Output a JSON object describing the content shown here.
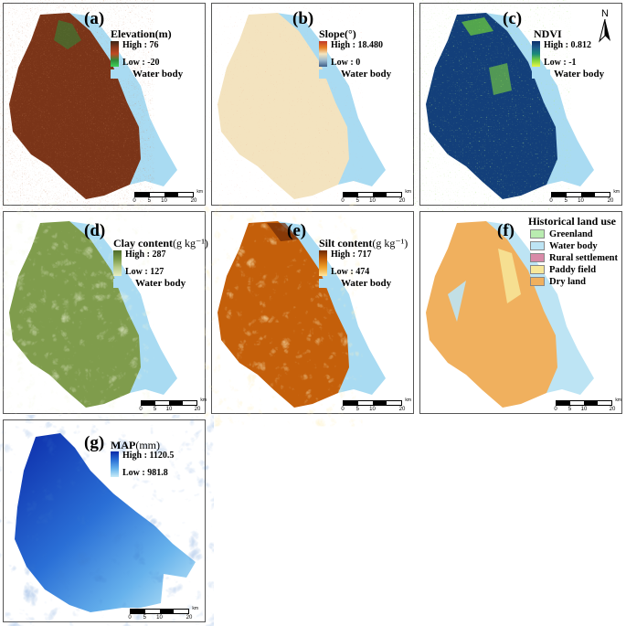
{
  "panels": {
    "a": {
      "label": "(a)",
      "title": "Elevation(m)",
      "high": "High : 76",
      "low": "Low : -20",
      "water": "Water body",
      "gradient": [
        "#3a2417",
        "#8c3a1e",
        "#c14a22",
        "#2e8b3a",
        "#3fd15a"
      ]
    },
    "b": {
      "label": "(b)",
      "title": "Slope(°)",
      "high": "High : 18.480",
      "low": "Low : 0",
      "water": "Water body",
      "gradient": [
        "#c0392b",
        "#e67e22",
        "#f5e6c0",
        "#9db9cc",
        "#3e5f8a"
      ]
    },
    "c": {
      "label": "(c)",
      "title": "NDVI",
      "high": "High : 0.812",
      "low": "Low : -1",
      "water": "Water body",
      "gradient": [
        "#0b2d6b",
        "#1f5c8c",
        "#1a8a7a",
        "#7dd43c",
        "#e8f54a"
      ]
    },
    "d": {
      "label": "(d)",
      "title": "Clay content",
      "unit": "(g kg⁻¹)",
      "high": "High : 287",
      "low": "Low : 127",
      "water": "Water body",
      "gradient": [
        "#4e6b2a",
        "#7a9a48",
        "#b8cc8a",
        "#e6edc4"
      ]
    },
    "e": {
      "label": "(e)",
      "title": "Silt content",
      "unit": "(g kg⁻¹)",
      "high": "High : 717",
      "low": "Low : 474",
      "water": "Water body",
      "gradient": [
        "#6e2a06",
        "#c45f0a",
        "#f0a12a",
        "#fde6a0"
      ]
    },
    "f": {
      "label": "(f)",
      "title": "Historical land use",
      "classes": [
        {
          "name": "Greenland",
          "color": "#b9ecb0"
        },
        {
          "name": "Water body",
          "color": "#bde4f4"
        },
        {
          "name": "Rural settlement",
          "color": "#d98aa8"
        },
        {
          "name": "Paddy field",
          "color": "#f7e79a"
        },
        {
          "name": "Dry land",
          "color": "#f0b05e"
        }
      ]
    },
    "g": {
      "label": "(g)",
      "title": "MAP",
      "unit": "(mm)",
      "high": "High : 1120.5",
      "low": "Low : 981.8",
      "gradient": [
        "#0b2aa8",
        "#2a6fd6",
        "#67b2ec",
        "#c8ecf8"
      ]
    }
  },
  "scalebar": {
    "ticks": [
      "0",
      "5",
      "10",
      "20"
    ],
    "unit": "km"
  },
  "north": {
    "letter": "N"
  },
  "colors": {
    "water": "#a9dbf2"
  }
}
